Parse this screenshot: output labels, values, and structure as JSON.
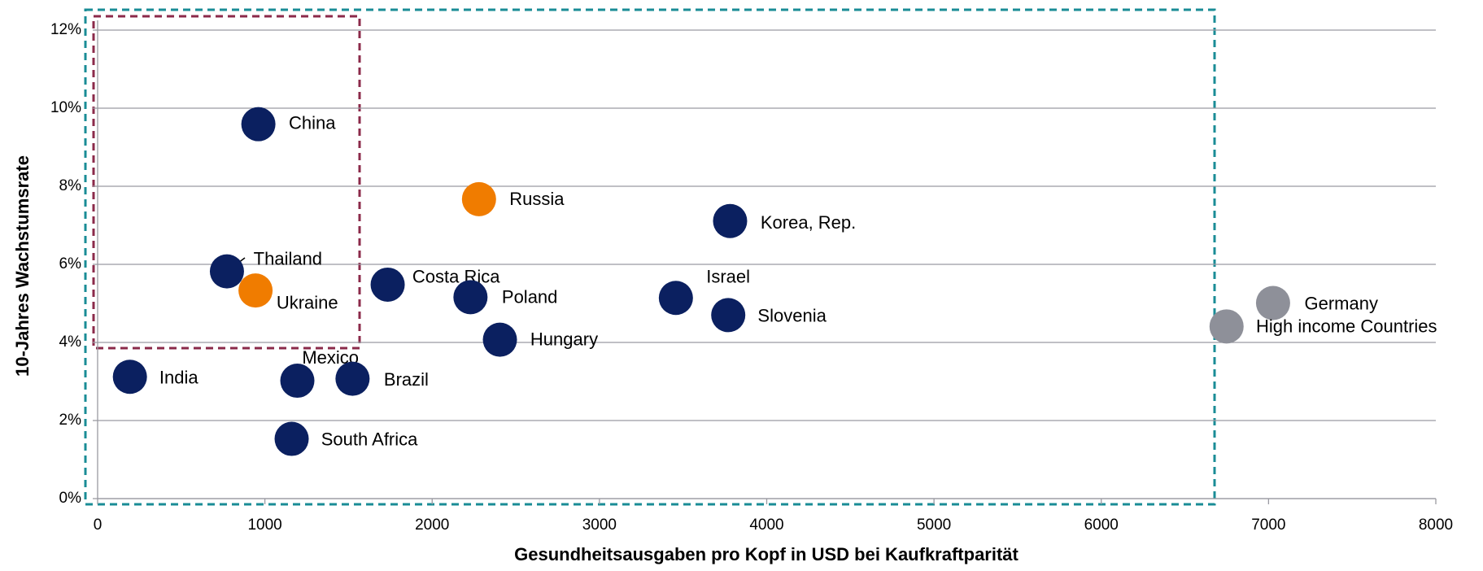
{
  "chart_data": {
    "type": "scatter",
    "x_label": "Gesundheitsausgaben pro Kopf in USD bei Kaufkraftparität",
    "y_label": "10-Jahres Wachstumsrate",
    "xlim": [
      0,
      8000
    ],
    "xticks": [
      0,
      1000,
      2000,
      3000,
      4000,
      5000,
      6000,
      7000,
      8000
    ],
    "ylim": [
      0,
      12
    ],
    "yticks": [
      {
        "value": 0,
        "label": "0%"
      },
      {
        "value": 2,
        "label": "2%"
      },
      {
        "value": 4,
        "label": "4%"
      },
      {
        "value": 6,
        "label": "6%"
      },
      {
        "value": 8,
        "label": "8%"
      },
      {
        "value": 10,
        "label": "10%"
      },
      {
        "value": 12,
        "label": "12%"
      }
    ],
    "grid": true,
    "series": [
      {
        "color": "#0b2060",
        "labels": [
          "China",
          "Korea, Rep.",
          "Thailand",
          "Costa Rica",
          "Poland",
          "Israel",
          "Slovenia",
          "Hungary",
          "India",
          "Mexico",
          "Brazil",
          "South Africa"
        ],
        "x": [
          961,
          3781,
          773,
          1734,
          2229,
          3457,
          3770,
          2405,
          193,
          1194,
          1524,
          1160
        ],
        "values": [
          9.59,
          7.11,
          5.82,
          5.48,
          5.16,
          5.14,
          4.7,
          4.07,
          3.12,
          3.02,
          3.07,
          1.53
        ]
      },
      {
        "color": "#f07c00",
        "labels": [
          "Russia",
          "Ukraine"
        ],
        "x": [
          2280,
          944
        ],
        "values": [
          7.67,
          5.33
        ]
      },
      {
        "color": "#8e9099",
        "labels": [
          "Germany",
          "High income Countries"
        ],
        "x": [
          7027,
          6749
        ],
        "values": [
          5.01,
          4.41
        ]
      }
    ]
  }
}
